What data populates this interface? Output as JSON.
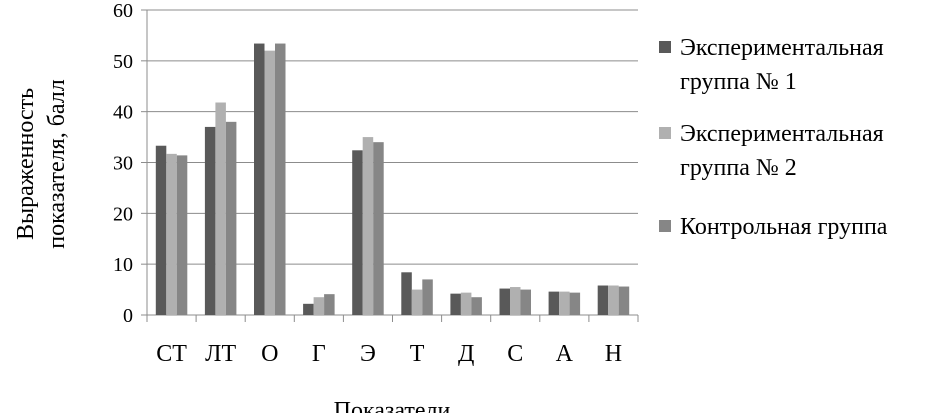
{
  "chart_data": {
    "type": "bar",
    "title": "",
    "xlabel": "Показатели",
    "ylabel_lines": [
      "Выраженность",
      "показателя, балл"
    ],
    "ylim": [
      0,
      60
    ],
    "yticks": [
      0,
      10,
      20,
      30,
      40,
      50,
      60
    ],
    "grid": true,
    "legend_position": "right",
    "categories": [
      "СТ",
      "ЛТ",
      "О",
      "Г",
      "Э",
      "Т",
      "Д",
      "С",
      "А",
      "Н"
    ],
    "series": [
      {
        "name_lines": [
          "Экспериментальная",
          "группа № 1"
        ],
        "color": "#595959",
        "values": [
          33.3,
          37.0,
          53.4,
          2.2,
          32.4,
          8.4,
          4.2,
          5.2,
          4.6,
          5.8
        ]
      },
      {
        "name_lines": [
          "Экспериментальная",
          "группа № 2"
        ],
        "color": "#b0b0b0",
        "values": [
          31.7,
          41.8,
          52.0,
          3.5,
          35.0,
          5.0,
          4.4,
          5.5,
          4.6,
          5.8
        ]
      },
      {
        "name_lines": [
          "Контрольная группа"
        ],
        "color": "#868686",
        "values": [
          31.4,
          38.0,
          53.4,
          4.1,
          34.0,
          7.0,
          3.5,
          5.0,
          4.4,
          5.6
        ]
      }
    ]
  }
}
